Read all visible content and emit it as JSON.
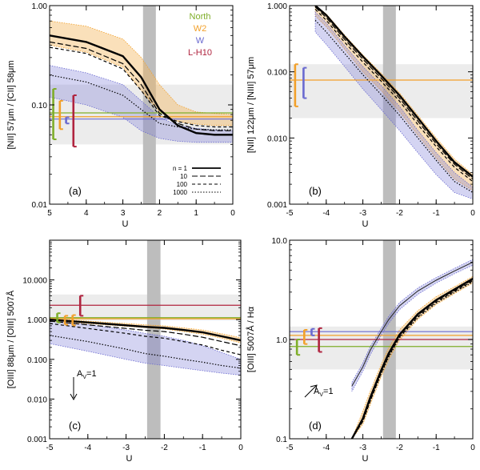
{
  "legend_regions": [
    {
      "name": "North",
      "color": "#7fae2a"
    },
    {
      "name": "W2",
      "color": "#f2a02a"
    },
    {
      "name": "W",
      "color": "#6a6ad0"
    },
    {
      "name": "L-H10",
      "color": "#b0243f"
    }
  ],
  "legend_densities": [
    {
      "label": "n = 1",
      "dash": ""
    },
    {
      "label": "10",
      "dash": "7,3"
    },
    {
      "label": "100",
      "dash": "4,3"
    },
    {
      "label": "1000",
      "dash": "1.5,2"
    }
  ],
  "chart_data": [
    {
      "id": "a",
      "type": "area",
      "panel_label": "(a)",
      "ylabel": "[NII] 57μm / [CII] 58μm",
      "xlabel": "U",
      "xlim": [
        5,
        0
      ],
      "ylim": [
        0.01,
        1.0
      ],
      "yscale": "log",
      "xticks": [
        5,
        4,
        3,
        2,
        1,
        0
      ],
      "yticks": [
        {
          "v": 1.0,
          "label": "1.00"
        },
        {
          "v": 0.1,
          "label": "0.10"
        },
        {
          "v": 0.01,
          "label": "0.01"
        }
      ],
      "gray_band_x": [
        2.45,
        2.1
      ],
      "obs_band_y": [
        0.04,
        0.16
      ],
      "obs_lines": [
        {
          "region": "North",
          "y": 0.083
        },
        {
          "region": "W2",
          "y": 0.076
        },
        {
          "region": "W",
          "y": 0.072
        }
      ],
      "errbars": [
        {
          "region": "North",
          "x": 4.9,
          "low": 0.045,
          "high": 0.145
        },
        {
          "region": "W2",
          "x": 4.72,
          "low": 0.057,
          "high": 0.11
        },
        {
          "region": "W",
          "x": 4.55,
          "low": 0.065,
          "high": 0.075
        },
        {
          "region": "L-H10",
          "x": 4.35,
          "low": 0.038,
          "high": 0.125
        }
      ],
      "x": [
        5,
        4,
        3,
        2.5,
        2,
        1.5,
        1,
        0.5,
        0
      ],
      "bands": [
        {
          "region": "W2",
          "upper": [
            0.7,
            0.62,
            0.46,
            0.3,
            0.16,
            0.1,
            0.085,
            0.082,
            0.08
          ],
          "lower": [
            0.4,
            0.34,
            0.24,
            0.14,
            0.085,
            0.068,
            0.064,
            0.062,
            0.062
          ]
        },
        {
          "region": "W",
          "upper": [
            0.25,
            0.21,
            0.16,
            0.11,
            0.075,
            0.062,
            0.058,
            0.056,
            0.055
          ],
          "lower": [
            0.12,
            0.1,
            0.075,
            0.055,
            0.046,
            0.043,
            0.042,
            0.042,
            0.042
          ]
        }
      ],
      "lines": [
        {
          "density": "n = 1",
          "y": [
            0.5,
            0.43,
            0.31,
            0.19,
            0.09,
            0.062,
            0.052,
            0.05,
            0.05
          ]
        },
        {
          "density": "10",
          "y": [
            0.43,
            0.37,
            0.26,
            0.16,
            0.082,
            0.065,
            0.057,
            0.055,
            0.055
          ]
        },
        {
          "density": "100",
          "y": [
            0.38,
            0.33,
            0.23,
            0.14,
            0.078,
            0.068,
            0.062,
            0.06,
            0.06
          ]
        },
        {
          "density": "1000",
          "y": [
            0.2,
            0.17,
            0.125,
            0.09,
            0.065,
            0.06,
            0.057,
            0.056,
            0.056
          ]
        }
      ]
    },
    {
      "id": "b",
      "type": "area",
      "panel_label": "(b)",
      "ylabel": "[NII] 122μm / [NIII] 57μm",
      "xlabel": "U",
      "xlim": [
        -5,
        0
      ],
      "ylim": [
        0.001,
        1.0
      ],
      "yscale": "log",
      "xticks": [
        -5,
        -4,
        -3,
        -2,
        -1,
        0
      ],
      "yticks": [
        {
          "v": 1.0,
          "label": "1.000"
        },
        {
          "v": 0.1,
          "label": "0.100"
        },
        {
          "v": 0.01,
          "label": "0.010"
        },
        {
          "v": 0.001,
          "label": "0.001"
        }
      ],
      "gray_band_x": [
        -2.45,
        -2.1
      ],
      "obs_band_y": [
        0.02,
        0.13
      ],
      "obs_lines": [
        {
          "region": "W2",
          "y": 0.075
        }
      ],
      "errbars": [
        {
          "region": "W2",
          "x": -4.85,
          "low": 0.03,
          "high": 0.13
        },
        {
          "region": "W",
          "x": -4.62,
          "low": 0.04,
          "high": 0.115
        }
      ],
      "x": [
        -4.3,
        -4,
        -3.5,
        -3,
        -2.5,
        -2,
        -1.5,
        -1,
        -0.5,
        0
      ],
      "bands": [
        {
          "region": "W2",
          "upper": [
            1.0,
            0.75,
            0.36,
            0.18,
            0.095,
            0.048,
            0.022,
            0.01,
            0.0048,
            0.0028
          ],
          "lower": [
            0.7,
            0.48,
            0.22,
            0.1,
            0.052,
            0.025,
            0.011,
            0.005,
            0.0024,
            0.0016
          ]
        },
        {
          "region": "W",
          "upper": [
            0.8,
            0.55,
            0.25,
            0.12,
            0.062,
            0.03,
            0.013,
            0.006,
            0.003,
            0.0018
          ],
          "lower": [
            0.4,
            0.26,
            0.12,
            0.055,
            0.027,
            0.013,
            0.006,
            0.0028,
            0.0015,
            0.0012
          ]
        }
      ],
      "lines": [
        {
          "density": "n = 1",
          "y": [
            1.0,
            0.72,
            0.34,
            0.17,
            0.088,
            0.044,
            0.02,
            0.009,
            0.0043,
            0.0026
          ]
        },
        {
          "density": "10",
          "y": [
            0.95,
            0.66,
            0.31,
            0.155,
            0.08,
            0.04,
            0.018,
            0.0082,
            0.004,
            0.0024
          ]
        },
        {
          "density": "100",
          "y": [
            0.88,
            0.6,
            0.28,
            0.14,
            0.072,
            0.036,
            0.016,
            0.0074,
            0.0036,
            0.0022
          ]
        },
        {
          "density": "1000",
          "y": [
            0.6,
            0.4,
            0.19,
            0.09,
            0.045,
            0.022,
            0.01,
            0.0046,
            0.0022,
            0.0015
          ]
        }
      ]
    },
    {
      "id": "c",
      "type": "area",
      "panel_label": "(c)",
      "ylabel": "[OIII] 88μm / [OIII] 5007Å",
      "xlabel": "U",
      "xlim": [
        -5,
        0
      ],
      "ylim": [
        0.001,
        100
      ],
      "yscale": "log",
      "xticks": [
        -5,
        -4,
        -3,
        -2,
        -1,
        0
      ],
      "yticks": [
        {
          "v": 10,
          "label": "10.000"
        },
        {
          "v": 1,
          "label": "1.000"
        },
        {
          "v": 0.1,
          "label": "0.100"
        },
        {
          "v": 0.01,
          "label": "0.010"
        },
        {
          "v": 0.001,
          "label": "0.001"
        }
      ],
      "gray_band_x": [
        -2.45,
        -2.1
      ],
      "obs_band_y": [
        0.95,
        4.3
      ],
      "obs_lines": [
        {
          "region": "L-H10",
          "y": 2.3
        },
        {
          "region": "North",
          "y": 1.12
        },
        {
          "region": "W2",
          "y": 1.05
        }
      ],
      "errbars": [
        {
          "region": "North",
          "x": -4.8,
          "low": 0.85,
          "high": 1.45
        },
        {
          "region": "W2",
          "x": -4.6,
          "low": 0.75,
          "high": 1.25
        },
        {
          "region": "W2",
          "x": -4.4,
          "low": 0.72,
          "high": 1.3
        },
        {
          "region": "L-H10",
          "x": -4.2,
          "low": 1.25,
          "high": 4.0
        }
      ],
      "arrow_label": "A",
      "arrow_sub": "V",
      "arrow_value": "=1",
      "x": [
        -5,
        -4,
        -3,
        -2.5,
        -2,
        -1.5,
        -1,
        -0.5,
        0
      ],
      "bands": [
        {
          "region": "W2",
          "upper": [
            1.05,
            0.92,
            0.8,
            0.74,
            0.7,
            0.62,
            0.55,
            0.44,
            0.35
          ],
          "lower": [
            0.9,
            0.8,
            0.68,
            0.63,
            0.58,
            0.5,
            0.43,
            0.34,
            0.26
          ]
        },
        {
          "region": "W",
          "upper": [
            0.95,
            0.75,
            0.55,
            0.45,
            0.38,
            0.3,
            0.22,
            0.15,
            0.1
          ],
          "lower": [
            0.25,
            0.16,
            0.1,
            0.08,
            0.07,
            0.06,
            0.052,
            0.045,
            0.04
          ]
        }
      ],
      "lines": [
        {
          "density": "n = 1",
          "y": [
            1.0,
            0.85,
            0.72,
            0.66,
            0.62,
            0.55,
            0.48,
            0.38,
            0.3
          ]
        },
        {
          "density": "10",
          "y": [
            0.92,
            0.74,
            0.6,
            0.54,
            0.5,
            0.43,
            0.36,
            0.28,
            0.22
          ]
        },
        {
          "density": "100",
          "y": [
            0.8,
            0.6,
            0.45,
            0.38,
            0.34,
            0.28,
            0.23,
            0.17,
            0.13
          ]
        },
        {
          "density": "1000",
          "y": [
            0.4,
            0.28,
            0.18,
            0.14,
            0.12,
            0.1,
            0.085,
            0.07,
            0.06
          ]
        }
      ]
    },
    {
      "id": "d",
      "type": "area",
      "panel_label": "(d)",
      "ylabel": "[OIII] 5007Å / Hα",
      "xlabel": "U",
      "xlim": [
        -5,
        0
      ],
      "ylim": [
        0.1,
        10
      ],
      "yscale": "log",
      "xticks": [
        -5,
        -4,
        -3,
        -2,
        -1,
        0
      ],
      "yticks": [
        {
          "v": 10,
          "label": "10.0"
        },
        {
          "v": 1,
          "label": "1.0"
        },
        {
          "v": 0.1,
          "label": "0.1"
        }
      ],
      "gray_band_x": [
        -2.45,
        -2.1
      ],
      "obs_band_y": [
        0.5,
        1.35
      ],
      "obs_lines": [
        {
          "region": "W",
          "y": 1.2
        },
        {
          "region": "W2",
          "y": 1.1
        },
        {
          "region": "L-H10",
          "y": 1.0
        },
        {
          "region": "North",
          "y": 0.85
        }
      ],
      "errbars": [
        {
          "region": "North",
          "x": -4.8,
          "low": 0.7,
          "high": 1.0
        },
        {
          "region": "W2",
          "x": -4.6,
          "low": 0.9,
          "high": 1.25
        },
        {
          "region": "W",
          "x": -4.4,
          "low": 1.1,
          "high": 1.28
        },
        {
          "region": "L-H10",
          "x": -4.2,
          "low": 0.75,
          "high": 1.3
        }
      ],
      "arrow_label": "A",
      "arrow_sub": "V",
      "arrow_value": "=1",
      "x": [
        -3.3,
        -3,
        -2.8,
        -2.5,
        -2.3,
        -2,
        -1.5,
        -1,
        -0.5,
        0
      ],
      "bands": [
        {
          "region": "W2",
          "upper": [
            0.1,
            0.19,
            0.3,
            0.56,
            0.82,
            1.25,
            1.95,
            2.7,
            3.4,
            4.3
          ],
          "lower": [
            0.1,
            0.14,
            0.22,
            0.42,
            0.62,
            0.98,
            1.6,
            2.25,
            2.9,
            3.7
          ]
        },
        {
          "region": "W",
          "upper": [
            0.37,
            0.58,
            0.85,
            1.3,
            1.7,
            2.35,
            3.3,
            4.2,
            5.2,
            6.4
          ],
          "lower": [
            0.3,
            0.48,
            0.7,
            1.1,
            1.45,
            2.0,
            2.85,
            3.7,
            4.6,
            5.6
          ]
        }
      ],
      "lines": [
        {
          "density": "n = 1",
          "y": [
            0.1,
            0.16,
            0.26,
            0.49,
            0.72,
            1.12,
            1.8,
            2.5,
            3.2,
            4.1
          ]
        },
        {
          "density": "10",
          "y": [
            0.1,
            0.16,
            0.25,
            0.48,
            0.7,
            1.1,
            1.76,
            2.45,
            3.12,
            4.0
          ]
        },
        {
          "density": "100",
          "y": [
            0.1,
            0.15,
            0.24,
            0.46,
            0.68,
            1.06,
            1.7,
            2.38,
            3.05,
            3.9
          ]
        },
        {
          "density": "1000",
          "y": [
            0.1,
            0.15,
            0.24,
            0.45,
            0.66,
            1.04,
            1.66,
            2.32,
            2.98,
            3.8
          ]
        }
      ],
      "extra_lines": [
        {
          "region": "W",
          "y": [
            0.34,
            0.53,
            0.78,
            1.2,
            1.58,
            2.18,
            3.08,
            3.95,
            4.9,
            6.0
          ]
        }
      ]
    }
  ]
}
